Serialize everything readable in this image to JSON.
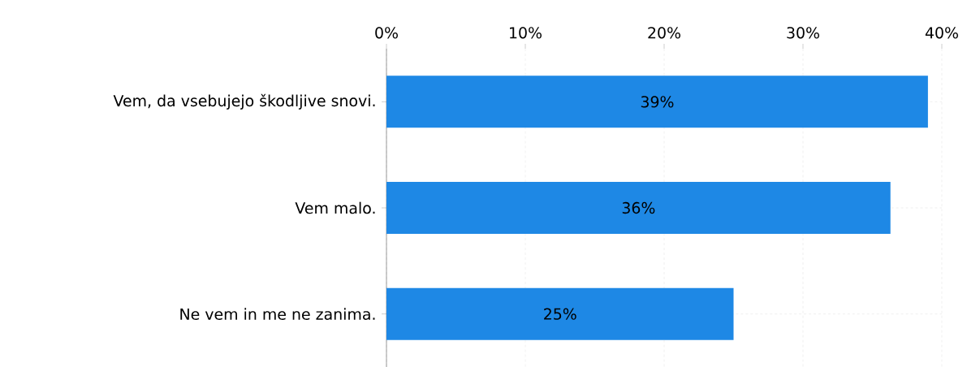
{
  "chart_data": {
    "type": "bar",
    "orientation": "horizontal",
    "categories": [
      "Vem, da vsebujejo škodljive snovi.",
      "Vem malo.",
      "Ne vem in me ne zanima."
    ],
    "values": [
      39,
      36.3,
      25
    ],
    "value_labels": [
      "39%",
      "36%",
      "25%"
    ],
    "color": "#1e88e5",
    "xlim": [
      0,
      40
    ],
    "xticks": [
      {
        "value": 0,
        "label": "0%"
      },
      {
        "value": 10,
        "label": "10%"
      },
      {
        "value": 20,
        "label": "20%"
      },
      {
        "value": 30,
        "label": "30%"
      },
      {
        "value": 40,
        "label": "40%"
      }
    ],
    "grid": true
  }
}
